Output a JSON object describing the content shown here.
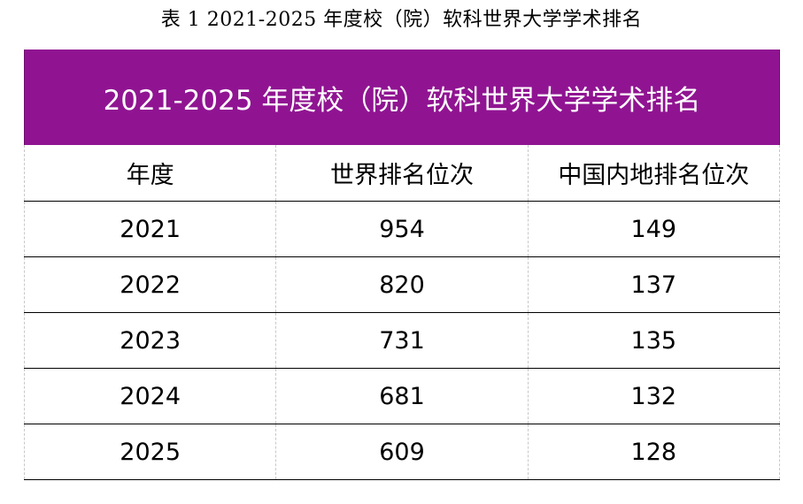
{
  "caption": "表 1  2021-2025 年度校（院）软科世界大学学术排名",
  "table": {
    "title": "2021-2025 年度校（院）软科世界大学学术排名",
    "columns": [
      "年度",
      "世界排名位次",
      "中国内地排名位次"
    ],
    "rows": [
      [
        "2021",
        "954",
        "149"
      ],
      [
        "2022",
        "820",
        "137"
      ],
      [
        "2023",
        "731",
        "135"
      ],
      [
        "2024",
        "681",
        "132"
      ],
      [
        "2025",
        "609",
        "128"
      ]
    ]
  },
  "colors": {
    "banner_background": "#901492",
    "banner_text": "#ffffff",
    "rule": "#000000"
  }
}
